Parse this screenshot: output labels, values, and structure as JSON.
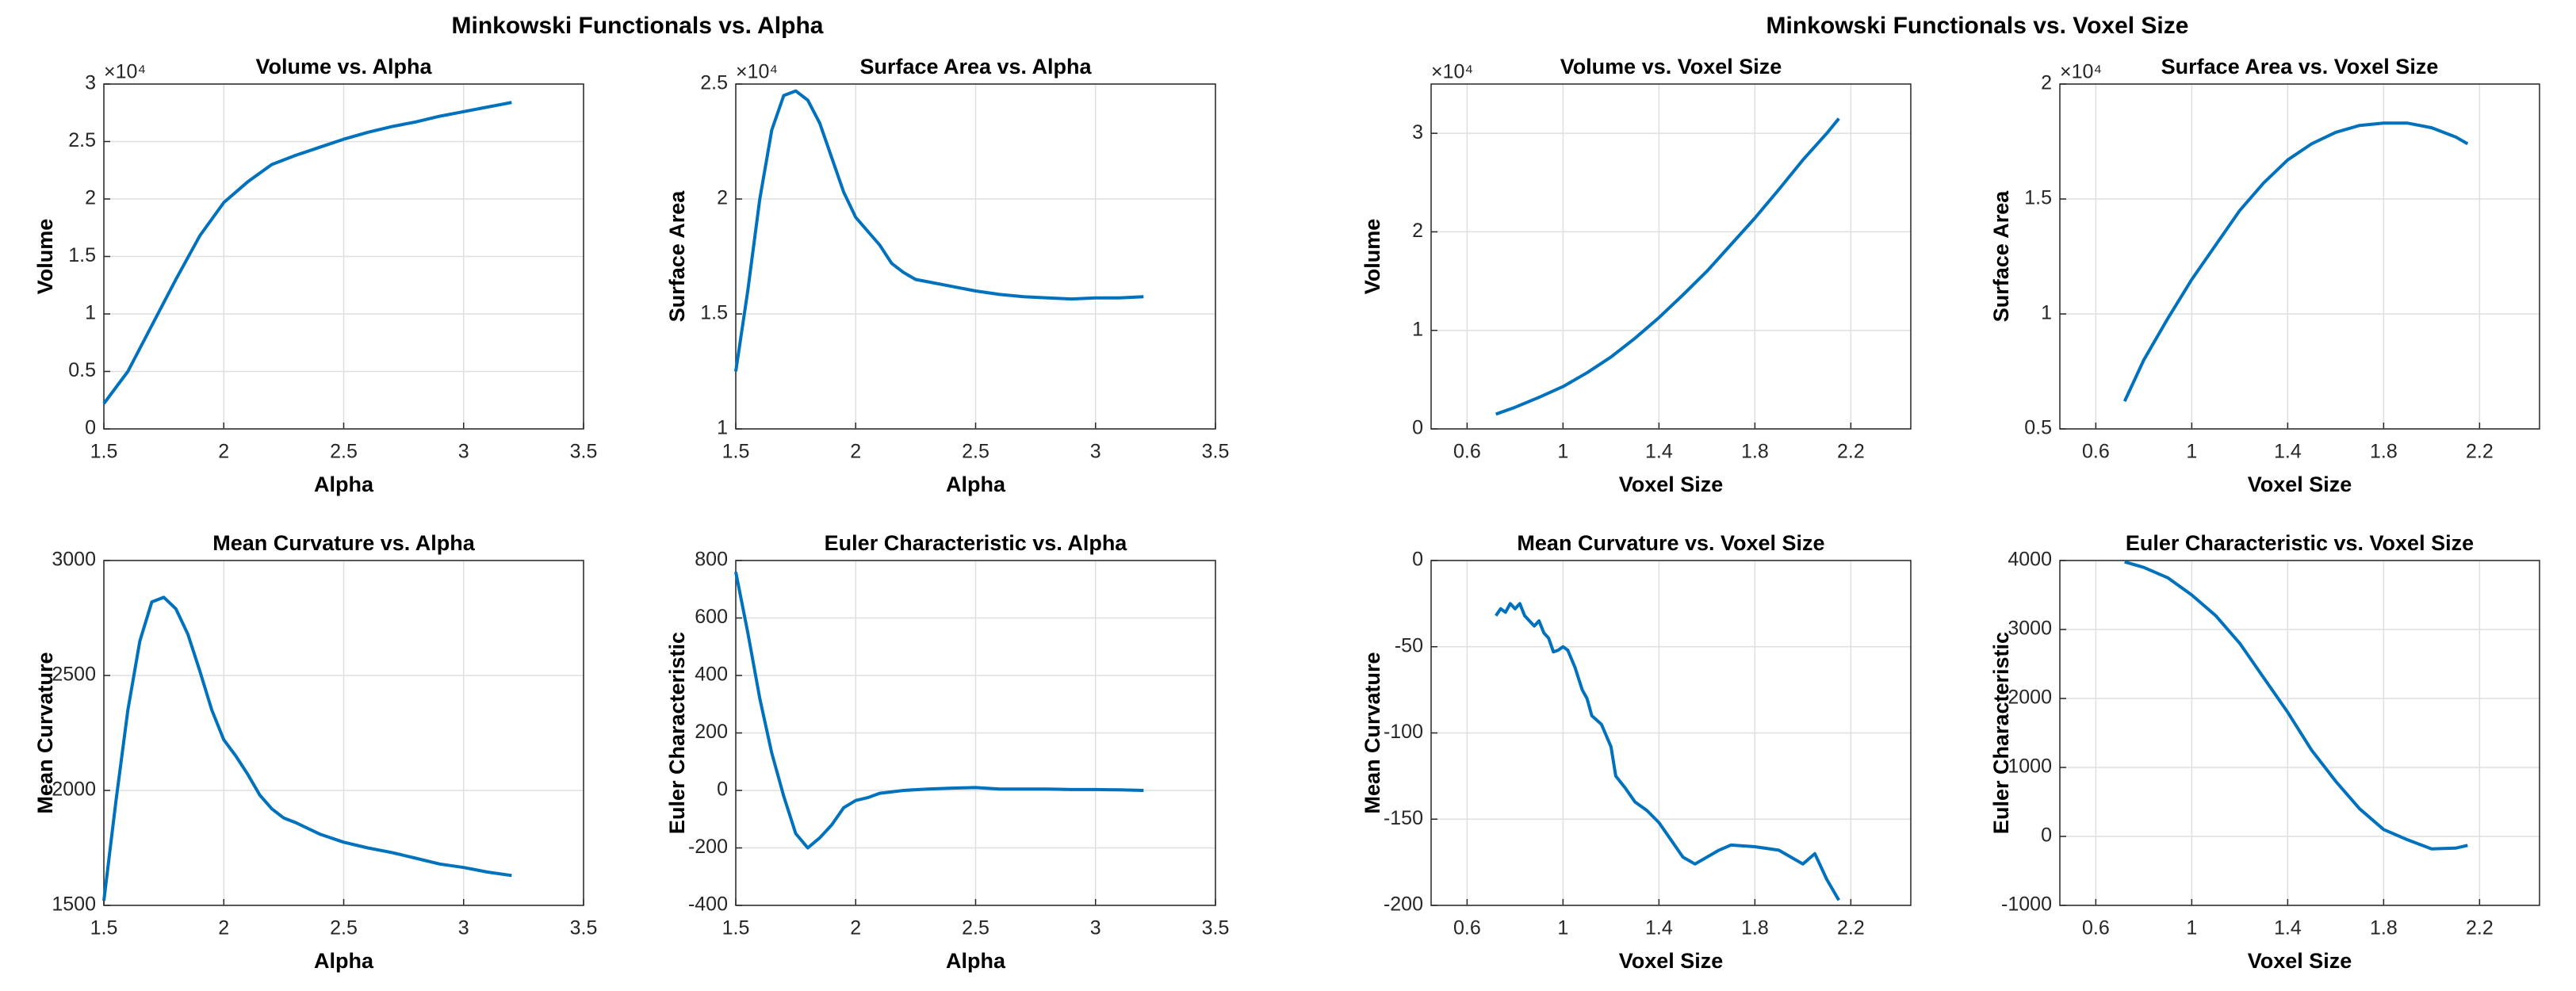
{
  "figure_titles": [
    "Minkowski Functionals vs. Alpha",
    "Minkowski Functionals vs. Voxel Size"
  ],
  "chart_data": [
    {
      "type": "line",
      "title": "Volume vs. Alpha",
      "xlabel": "Alpha",
      "ylabel": "Volume",
      "y_scale_label": "×10⁴",
      "color": "#0072bd",
      "grid": true,
      "xlim": [
        1.5,
        3.5
      ],
      "xticks": [
        1.5,
        2,
        2.5,
        3,
        3.5
      ],
      "ylim": [
        0,
        3
      ],
      "yticks": [
        0,
        0.5,
        1,
        1.5,
        2,
        2.5,
        3
      ],
      "x": [
        1.5,
        1.6,
        1.7,
        1.8,
        1.9,
        2.0,
        2.1,
        2.2,
        2.3,
        2.4,
        2.5,
        2.6,
        2.7,
        2.8,
        2.9,
        3.0,
        3.1,
        3.2
      ],
      "values": [
        0.22,
        0.5,
        0.9,
        1.3,
        1.68,
        1.97,
        2.15,
        2.3,
        2.38,
        2.45,
        2.52,
        2.58,
        2.63,
        2.67,
        2.72,
        2.76,
        2.8,
        2.84
      ]
    },
    {
      "type": "line",
      "title": "Surface Area vs. Alpha",
      "xlabel": "Alpha",
      "ylabel": "Surface Area",
      "y_scale_label": "×10⁴",
      "color": "#0072bd",
      "grid": true,
      "xlim": [
        1.5,
        3.5
      ],
      "xticks": [
        1.5,
        2,
        2.5,
        3,
        3.5
      ],
      "ylim": [
        1,
        2.5
      ],
      "yticks": [
        1,
        1.5,
        2,
        2.5
      ],
      "x": [
        1.5,
        1.55,
        1.6,
        1.65,
        1.7,
        1.75,
        1.8,
        1.85,
        1.9,
        1.95,
        2.0,
        2.1,
        2.15,
        2.2,
        2.25,
        2.3,
        2.4,
        2.5,
        2.6,
        2.7,
        2.8,
        2.9,
        3.0,
        3.1,
        3.2
      ],
      "values": [
        1.25,
        1.6,
        2.0,
        2.3,
        2.45,
        2.47,
        2.43,
        2.33,
        2.18,
        2.03,
        1.92,
        1.8,
        1.72,
        1.68,
        1.65,
        1.64,
        1.62,
        1.6,
        1.585,
        1.575,
        1.57,
        1.565,
        1.57,
        1.57,
        1.575
      ]
    },
    {
      "type": "line",
      "title": "Mean Curvature vs. Alpha",
      "xlabel": "Alpha",
      "ylabel": "Mean Curvature",
      "color": "#0072bd",
      "grid": true,
      "xlim": [
        1.5,
        3.5
      ],
      "xticks": [
        1.5,
        2,
        2.5,
        3,
        3.5
      ],
      "ylim": [
        1500,
        3000
      ],
      "yticks": [
        1500,
        2000,
        2500,
        3000
      ],
      "x": [
        1.5,
        1.55,
        1.6,
        1.65,
        1.7,
        1.75,
        1.8,
        1.85,
        1.9,
        1.95,
        2.0,
        2.05,
        2.1,
        2.15,
        2.2,
        2.25,
        2.3,
        2.4,
        2.5,
        2.6,
        2.7,
        2.8,
        2.9,
        3.0,
        3.1,
        3.2
      ],
      "values": [
        1520,
        1950,
        2350,
        2650,
        2820,
        2840,
        2790,
        2680,
        2520,
        2350,
        2220,
        2150,
        2070,
        1980,
        1920,
        1880,
        1860,
        1810,
        1775,
        1750,
        1730,
        1705,
        1680,
        1665,
        1645,
        1630
      ]
    },
    {
      "type": "line",
      "title": "Euler Characteristic vs. Alpha",
      "xlabel": "Alpha",
      "ylabel": "Euler Characteristic",
      "color": "#0072bd",
      "grid": true,
      "xlim": [
        1.5,
        3.5
      ],
      "xticks": [
        1.5,
        2,
        2.5,
        3,
        3.5
      ],
      "ylim": [
        -400,
        800
      ],
      "yticks": [
        -400,
        -200,
        0,
        200,
        400,
        600,
        800
      ],
      "x": [
        1.5,
        1.55,
        1.6,
        1.65,
        1.7,
        1.75,
        1.8,
        1.85,
        1.9,
        1.95,
        2.0,
        2.05,
        2.1,
        2.2,
        2.3,
        2.4,
        2.5,
        2.6,
        2.7,
        2.8,
        2.9,
        3.0,
        3.1,
        3.2
      ],
      "values": [
        760,
        550,
        320,
        130,
        -20,
        -150,
        -200,
        -165,
        -120,
        -60,
        -35,
        -25,
        -10,
        0,
        5,
        8,
        10,
        5,
        5,
        5,
        3,
        3,
        2,
        0
      ]
    },
    {
      "type": "line",
      "title": "Volume vs. Voxel Size",
      "xlabel": "Voxel Size",
      "ylabel": "Volume",
      "y_scale_label": "×10⁴",
      "color": "#0072bd",
      "grid": true,
      "xlim": [
        0.45,
        2.45
      ],
      "xticks": [
        0.6,
        1,
        1.4,
        1.8,
        2.2
      ],
      "ylim": [
        0,
        3.5
      ],
      "yticks": [
        0,
        1,
        2,
        3
      ],
      "x": [
        0.72,
        0.8,
        0.9,
        1.0,
        1.1,
        1.2,
        1.3,
        1.4,
        1.5,
        1.6,
        1.7,
        1.8,
        1.9,
        2.0,
        2.1,
        2.15
      ],
      "values": [
        0.15,
        0.22,
        0.32,
        0.43,
        0.57,
        0.73,
        0.92,
        1.13,
        1.36,
        1.6,
        1.87,
        2.14,
        2.43,
        2.73,
        3.0,
        3.15
      ]
    },
    {
      "type": "line",
      "title": "Surface Area vs. Voxel Size",
      "xlabel": "Voxel Size",
      "ylabel": "Surface Area",
      "y_scale_label": "×10⁴",
      "color": "#0072bd",
      "grid": true,
      "xlim": [
        0.45,
        2.45
      ],
      "xticks": [
        0.6,
        1,
        1.4,
        1.8,
        2.2
      ],
      "ylim": [
        0.5,
        2
      ],
      "yticks": [
        0.5,
        1,
        1.5,
        2
      ],
      "x": [
        0.72,
        0.8,
        0.9,
        1.0,
        1.1,
        1.2,
        1.3,
        1.4,
        1.5,
        1.6,
        1.7,
        1.8,
        1.9,
        2.0,
        2.1,
        2.15
      ],
      "values": [
        0.62,
        0.8,
        0.98,
        1.15,
        1.3,
        1.45,
        1.57,
        1.67,
        1.74,
        1.79,
        1.82,
        1.83,
        1.83,
        1.81,
        1.77,
        1.74
      ]
    },
    {
      "type": "line",
      "title": "Mean Curvature vs. Voxel Size",
      "xlabel": "Voxel Size",
      "ylabel": "Mean Curvature",
      "color": "#0072bd",
      "grid": true,
      "xlim": [
        0.45,
        2.45
      ],
      "xticks": [
        0.6,
        1,
        1.4,
        1.8,
        2.2
      ],
      "ylim": [
        -200,
        0
      ],
      "yticks": [
        -200,
        -150,
        -100,
        -50,
        0
      ],
      "x": [
        0.72,
        0.74,
        0.76,
        0.78,
        0.8,
        0.82,
        0.84,
        0.86,
        0.88,
        0.9,
        0.92,
        0.94,
        0.96,
        0.98,
        1.0,
        1.02,
        1.05,
        1.08,
        1.1,
        1.12,
        1.16,
        1.2,
        1.22,
        1.26,
        1.3,
        1.35,
        1.4,
        1.45,
        1.5,
        1.55,
        1.6,
        1.65,
        1.7,
        1.8,
        1.9,
        1.95,
        2.0,
        2.05,
        2.1,
        2.15
      ],
      "values": [
        -32,
        -28,
        -30,
        -25,
        -28,
        -25,
        -32,
        -35,
        -38,
        -35,
        -42,
        -45,
        -53,
        -52,
        -50,
        -52,
        -62,
        -75,
        -80,
        -90,
        -95,
        -108,
        -125,
        -132,
        -140,
        -145,
        -152,
        -162,
        -172,
        -176,
        -172,
        -168,
        -165,
        -166,
        -168,
        -172,
        -176,
        -170,
        -185,
        -197
      ]
    },
    {
      "type": "line",
      "title": "Euler Characteristic vs. Voxel Size",
      "xlabel": "Voxel Size",
      "ylabel": "Euler Characteristic",
      "color": "#0072bd",
      "grid": true,
      "xlim": [
        0.45,
        2.45
      ],
      "xticks": [
        0.6,
        1,
        1.4,
        1.8,
        2.2
      ],
      "ylim": [
        -1000,
        4000
      ],
      "yticks": [
        -1000,
        0,
        1000,
        2000,
        3000,
        4000
      ],
      "x": [
        0.72,
        0.8,
        0.9,
        1.0,
        1.1,
        1.2,
        1.3,
        1.4,
        1.5,
        1.6,
        1.7,
        1.8,
        1.9,
        2.0,
        2.1,
        2.15
      ],
      "values": [
        3980,
        3900,
        3750,
        3500,
        3200,
        2800,
        2300,
        1800,
        1250,
        800,
        400,
        100,
        -50,
        -180,
        -170,
        -130
      ]
    }
  ]
}
